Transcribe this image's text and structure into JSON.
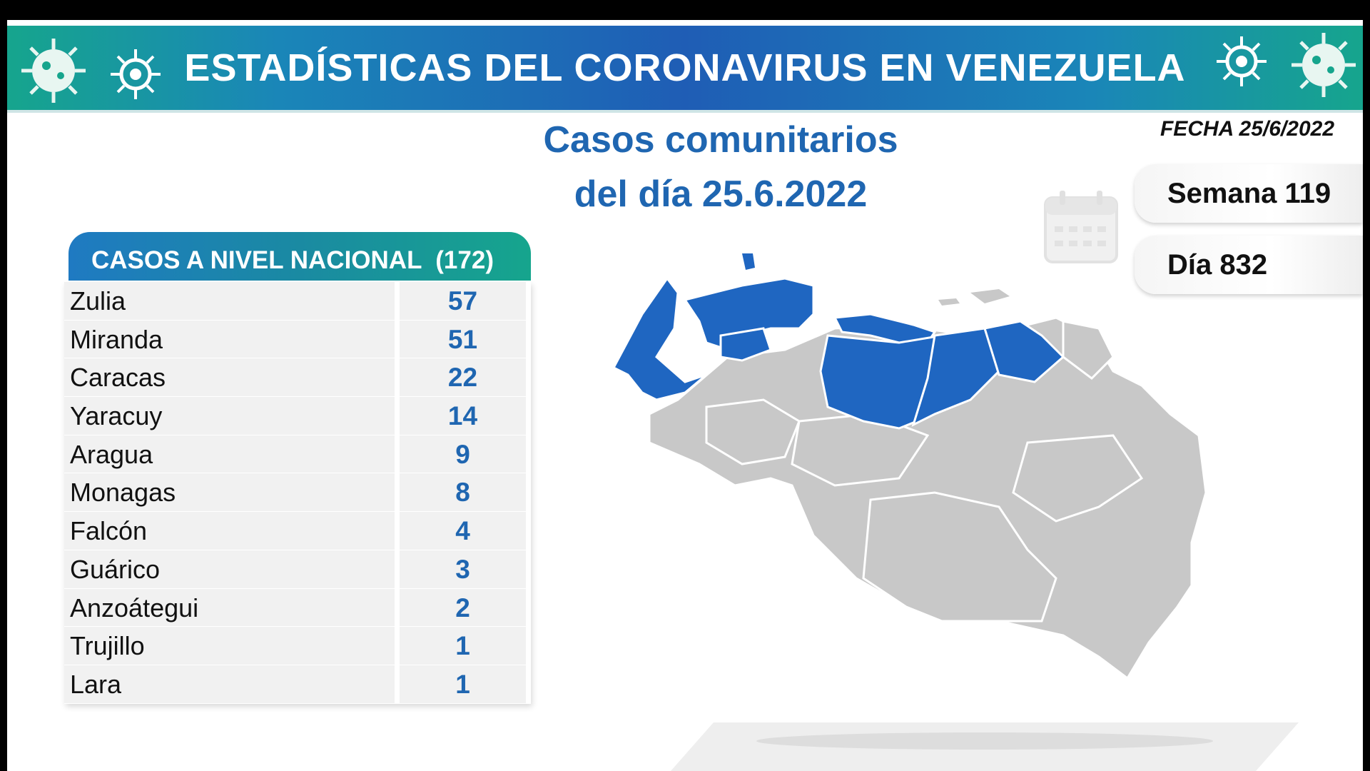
{
  "banner": {
    "title": "ESTADÍSTICAS DEL CORONAVIRUS EN VENEZUELA"
  },
  "subtitle": {
    "line1": "Casos comunitarios",
    "line2": "del día 25.6.2022"
  },
  "fecha": "FECHA 25/6/2022",
  "semana": "Semana 119",
  "dia": "Día 832",
  "table": {
    "header": "CASOS A NIVEL NACIONAL  (172)",
    "rows": [
      {
        "state": "Zulia",
        "cases": "57"
      },
      {
        "state": "Miranda",
        "cases": "51"
      },
      {
        "state": "Caracas",
        "cases": "22"
      },
      {
        "state": "Yaracuy",
        "cases": "14"
      },
      {
        "state": "Aragua",
        "cases": "9"
      },
      {
        "state": "Monagas",
        "cases": "8"
      },
      {
        "state": "Falcón",
        "cases": "4"
      },
      {
        "state": "Guárico",
        "cases": "3"
      },
      {
        "state": "Anzoátegui",
        "cases": "2"
      },
      {
        "state": "Trujillo",
        "cases": "1"
      },
      {
        "state": "Lara",
        "cases": "1"
      }
    ]
  },
  "colors": {
    "highlight": "#1f66c1",
    "map_gray": "#c8c8c8",
    "title_blue": "#1f66b1"
  },
  "icons": [
    "virus-icon",
    "calendar-icon",
    "venezuela-map"
  ]
}
